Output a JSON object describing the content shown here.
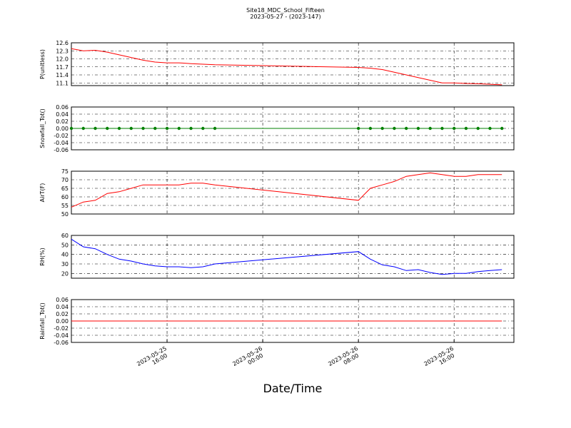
{
  "title": "Site18_MDC_School_Fifteen",
  "subtitle": "2023-05-27 - (2023-147)",
  "xlabel": "Date/Time",
  "x": [
    "2023-05-25 08:00",
    "2023-05-25 09:00",
    "2023-05-25 10:00",
    "2023-05-25 11:00",
    "2023-05-25 12:00",
    "2023-05-25 13:00",
    "2023-05-25 14:00",
    "2023-05-25 15:00",
    "2023-05-25 16:00",
    "2023-05-25 17:00",
    "2023-05-25 18:00",
    "2023-05-25 19:00",
    "2023-05-25 20:00",
    "2023-05-26 08:00",
    "2023-05-26 09:00",
    "2023-05-26 10:00",
    "2023-05-26 11:00",
    "2023-05-26 12:00",
    "2023-05-26 13:00",
    "2023-05-26 14:00",
    "2023-05-26 15:00",
    "2023-05-26 16:00",
    "2023-05-26 17:00",
    "2023-05-26 18:00",
    "2023-05-26 19:00",
    "2023-05-26 20:00"
  ],
  "xlim": [
    "2023-05-25 08:00",
    "2023-05-26 21:00"
  ],
  "xticks": [
    "2023-05-25 16:00",
    "2023-05-26 00:00",
    "2023-05-26 08:00",
    "2023-05-26 16:00"
  ],
  "chart_data": [
    {
      "type": "line",
      "ylabel": "P(unitless)",
      "color": "#ff0000",
      "marker": false,
      "grid": true,
      "ylim": [
        11.0,
        12.6
      ],
      "yticks": [
        11.1,
        11.4,
        11.7,
        {
          "value": 12.0,
          "label": "12.0"
        },
        12.3,
        12.6
      ],
      "values": [
        12.38,
        12.3,
        12.32,
        12.25,
        12.15,
        12.05,
        11.95,
        11.88,
        11.85,
        11.85,
        11.82,
        11.8,
        11.78,
        11.68,
        11.65,
        11.6,
        11.5,
        11.4,
        11.3,
        11.2,
        11.1,
        11.1,
        11.08,
        11.07,
        11.05,
        11.03
      ]
    },
    {
      "type": "line",
      "ylabel": "Snowfall_Tot()",
      "color": "#008000",
      "marker": true,
      "grid": true,
      "ylim": [
        -0.06,
        0.06
      ],
      "yticks": [
        -0.06,
        -0.04,
        -0.02,
        {
          "value": 0,
          "label": "0.00"
        },
        0.02,
        0.04,
        0.06
      ],
      "values": [
        0,
        0,
        0,
        0,
        0,
        0,
        0,
        0,
        0,
        0,
        0,
        0,
        0,
        0,
        0,
        0,
        0,
        0,
        0,
        0,
        0,
        0,
        0,
        0,
        0,
        0
      ]
    },
    {
      "type": "line",
      "ylabel": "AirT(F)",
      "color": "#ff0000",
      "marker": false,
      "grid": true,
      "ylim": [
        50,
        75
      ],
      "yticks": [
        50,
        55,
        60,
        65,
        70,
        75
      ],
      "values": [
        54,
        57,
        58,
        62,
        63,
        65,
        67,
        67,
        67,
        67,
        68,
        68,
        67,
        58,
        65,
        67,
        69,
        72,
        73,
        74,
        73,
        72,
        72,
        73,
        73,
        73
      ]
    },
    {
      "type": "line",
      "ylabel": "RH(%)",
      "color": "#0000ff",
      "marker": false,
      "grid": true,
      "ylim": [
        15,
        60
      ],
      "yticks": [
        20,
        30,
        40,
        50,
        60
      ],
      "values": [
        56,
        48,
        46,
        40,
        35,
        33,
        30,
        28,
        27,
        27,
        26,
        27,
        30,
        43,
        35,
        29,
        27,
        23,
        24,
        21,
        19,
        20,
        20,
        22,
        23,
        24
      ]
    },
    {
      "type": "line",
      "ylabel": "Rainfall_Tot()",
      "color": "#ff0000",
      "marker": false,
      "grid": true,
      "ylim": [
        -0.06,
        0.06
      ],
      "yticks": [
        -0.06,
        -0.04,
        -0.02,
        {
          "value": 0,
          "label": "0.00"
        },
        0.02,
        0.04,
        0.06
      ],
      "values": [
        0,
        0,
        0,
        0,
        0,
        0,
        0,
        0,
        0,
        0,
        0,
        0,
        0,
        0,
        0,
        0,
        0,
        0,
        0,
        0,
        0,
        0,
        0,
        0,
        0,
        0
      ]
    }
  ]
}
